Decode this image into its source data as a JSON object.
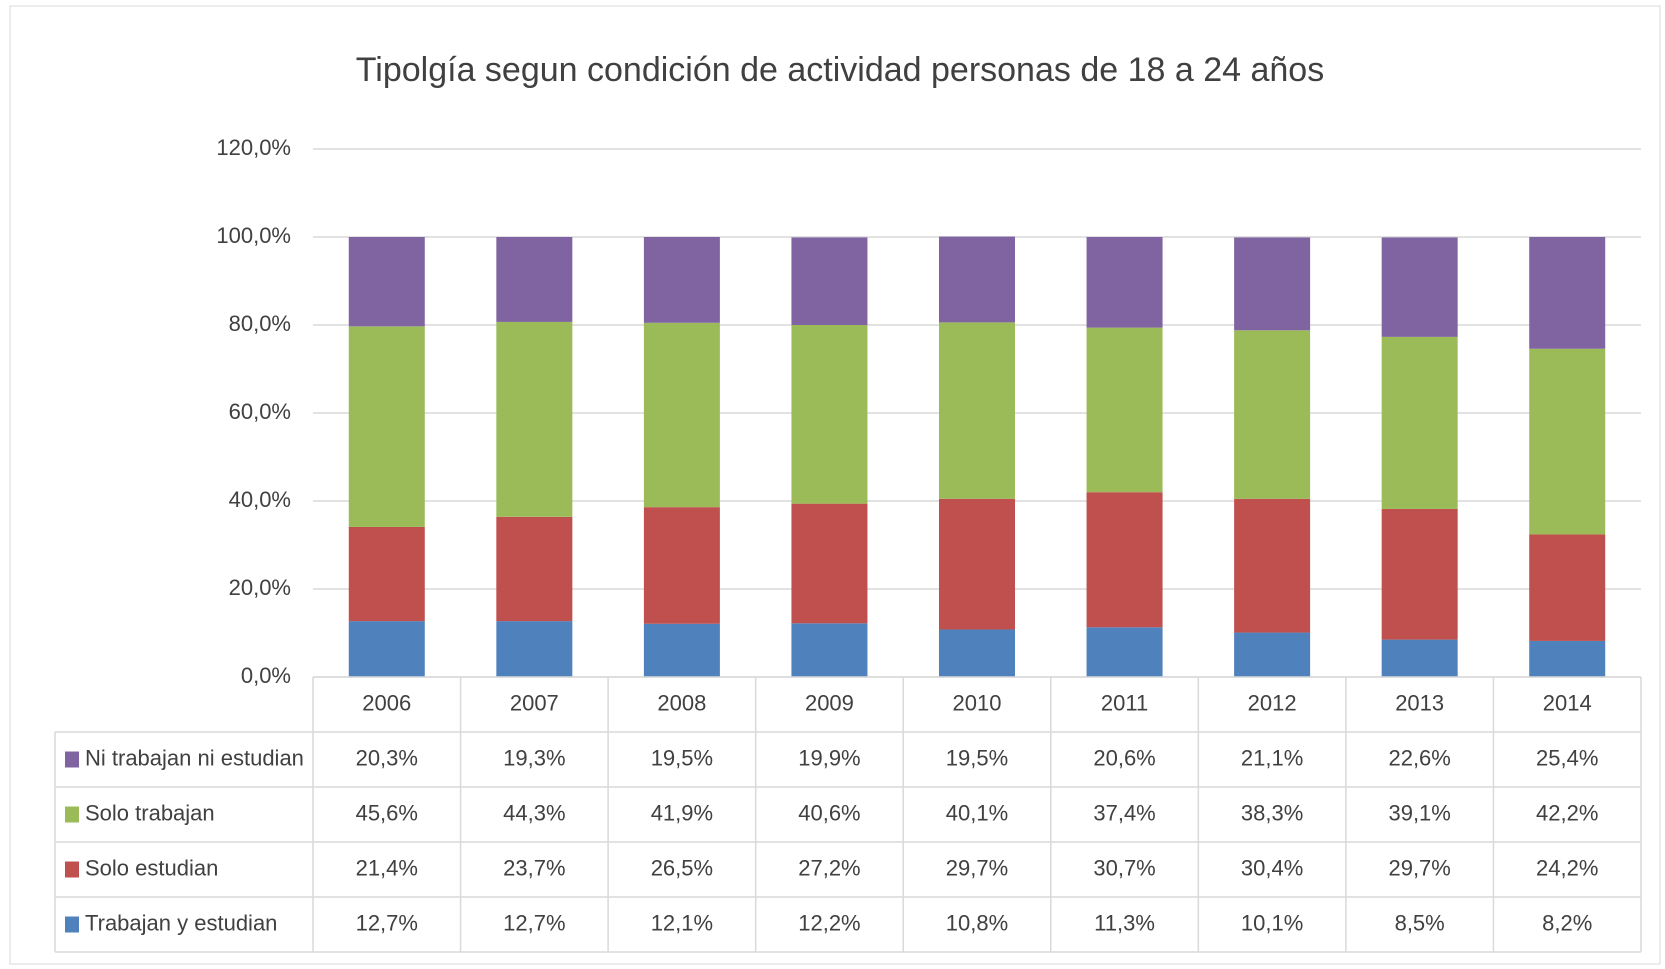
{
  "chart_data": {
    "type": "stacked-bar",
    "title": "Tipolgía segun condición de actividad personas de 18 a 24 años",
    "categories": [
      "2006",
      "2007",
      "2008",
      "2009",
      "2010",
      "2011",
      "2012",
      "2013",
      "2014"
    ],
    "series": [
      {
        "name": "Trabajan y estudian",
        "color": "#4f81bd",
        "values": [
          12.7,
          12.7,
          12.1,
          12.2,
          10.8,
          11.3,
          10.1,
          8.5,
          8.2
        ],
        "value_labels": [
          "12,7%",
          "12,7%",
          "12,1%",
          "12,2%",
          "10,8%",
          "11,3%",
          "10,1%",
          "8,5%",
          "8,2%"
        ]
      },
      {
        "name": "Solo estudian",
        "color": "#c0504d",
        "values": [
          21.4,
          23.7,
          26.5,
          27.2,
          29.7,
          30.7,
          30.4,
          29.7,
          24.2
        ],
        "value_labels": [
          "21,4%",
          "23,7%",
          "26,5%",
          "27,2%",
          "29,7%",
          "30,7%",
          "30,4%",
          "29,7%",
          "24,2%"
        ]
      },
      {
        "name": "Solo trabajan",
        "color": "#9bbb59",
        "values": [
          45.6,
          44.3,
          41.9,
          40.6,
          40.1,
          37.4,
          38.3,
          39.1,
          42.2
        ],
        "value_labels": [
          "45,6%",
          "44,3%",
          "41,9%",
          "40,6%",
          "40,1%",
          "37,4%",
          "38,3%",
          "39,1%",
          "42,2%"
        ]
      },
      {
        "name": "Ni trabajan ni estudian",
        "color": "#8064a2",
        "values": [
          20.3,
          19.3,
          19.5,
          19.9,
          19.5,
          20.6,
          21.1,
          22.6,
          25.4
        ],
        "value_labels": [
          "20,3%",
          "19,3%",
          "19,5%",
          "19,9%",
          "19,5%",
          "20,6%",
          "21,1%",
          "22,6%",
          "25,4%"
        ]
      }
    ],
    "ylim": [
      0,
      120
    ],
    "yticks": [
      {
        "value": 0,
        "label": "0,0%"
      },
      {
        "value": 20,
        "label": "20,0%"
      },
      {
        "value": 40,
        "label": "40,0%"
      },
      {
        "value": 60,
        "label": "60,0%"
      },
      {
        "value": 80,
        "label": "80,0%"
      },
      {
        "value": 100,
        "label": "100,0%"
      },
      {
        "value": 120,
        "label": "120,0%"
      }
    ],
    "grid": true
  }
}
